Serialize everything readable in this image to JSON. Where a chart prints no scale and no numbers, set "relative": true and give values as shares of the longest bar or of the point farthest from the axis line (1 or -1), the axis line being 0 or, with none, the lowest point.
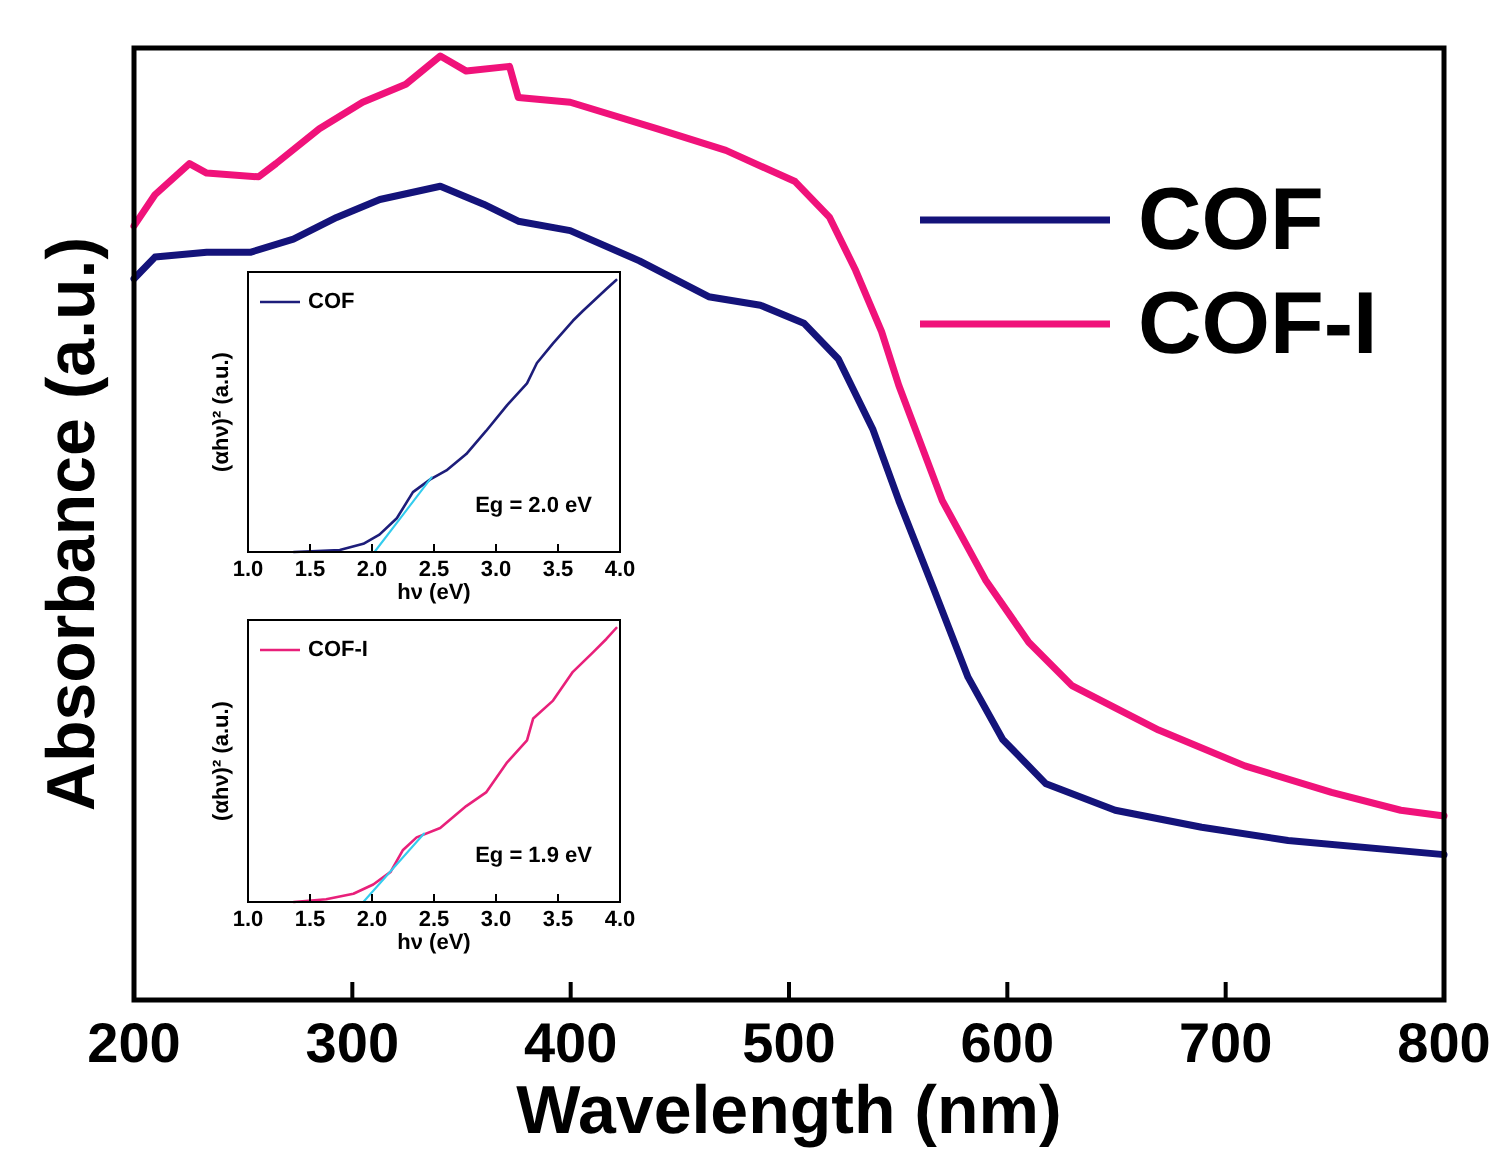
{
  "chart_data": [
    {
      "type": "line",
      "xlabel": "Wavelength (nm)",
      "ylabel": "Absorbance (a.u.)",
      "relative": true,
      "tick_labels": "x",
      "legend": "top right",
      "grid": false,
      "xlim": [
        200,
        800
      ],
      "xticks": [
        200,
        300,
        400,
        500,
        600,
        700,
        800
      ],
      "series": [
        {
          "name": "COF",
          "color": "#14137a",
          "x": [
            200,
            209.6,
            233.3,
            253.2,
            273,
            292.8,
            312.6,
            340.3,
            360.1,
            376,
            399.8,
            431.5,
            463.2,
            486.9,
            506.8,
            522.6,
            538.5,
            550.3,
            566.2,
            582,
            597.9,
            617.7,
            649.4,
            689,
            728.6,
            800
          ],
          "values": [
            0.764,
            0.787,
            0.792,
            0.792,
            0.806,
            0.829,
            0.848,
            0.862,
            0.843,
            0.825,
            0.815,
            0.783,
            0.745,
            0.736,
            0.717,
            0.679,
            0.604,
            0.529,
            0.436,
            0.342,
            0.276,
            0.229,
            0.201,
            0.183,
            0.169,
            0.154
          ]
        },
        {
          "name": "COF-I",
          "color": "#f0127a",
          "x": [
            200,
            209.6,
            225.4,
            233.3,
            257.1,
            265,
            284.9,
            304.7,
            324.5,
            340.3,
            352.2,
            372,
            376,
            399.8,
            439.4,
            471.1,
            502.8,
            518.6,
            530.5,
            542.4,
            550.3,
            570.2,
            590,
            609.8,
            629.6,
            669.3,
            708.8,
            748.5,
            780.2,
            800
          ],
          "values": [
            0.82,
            0.853,
            0.886,
            0.876,
            0.872,
            0.886,
            0.923,
            0.951,
            0.97,
            1,
            0.984,
            0.989,
            0.956,
            0.951,
            0.923,
            0.9,
            0.867,
            0.829,
            0.773,
            0.708,
            0.651,
            0.529,
            0.445,
            0.379,
            0.333,
            0.286,
            0.248,
            0.22,
            0.201,
            0.195
          ]
        }
      ]
    },
    {
      "type": "line",
      "xlabel": "hν (eV)",
      "ylabel": "(αhν)² (a.u.)",
      "relative": true,
      "legend": "top left",
      "grid": false,
      "tick_labels": "x",
      "xlim": [
        1,
        4
      ],
      "xticks": [
        {
          "value": 1,
          "label": "1.0"
        },
        {
          "value": 1.5,
          "label": "1.5"
        },
        {
          "value": 2,
          "label": "2.0"
        },
        {
          "value": 2.5,
          "label": "2.5"
        },
        {
          "value": 3,
          "label": "3.0"
        },
        {
          "value": 3.5,
          "label": "3.5"
        },
        {
          "value": 4,
          "label": "4.0"
        }
      ],
      "annotations": [
        "Eg = 2.0 eV"
      ],
      "series": [
        {
          "name": "COF",
          "color": "#1d1d7a",
          "x": [
            1.37,
            1.74,
            1.93,
            2.06,
            2.2,
            2.33,
            2.47,
            2.6,
            2.76,
            2.92,
            3.09,
            3.25,
            3.33,
            3.46,
            3.62,
            3.7,
            3.78,
            3.89,
            3.97
          ],
          "values": [
            0,
            0.007,
            0.03,
            0.064,
            0.124,
            0.22,
            0.267,
            0.3,
            0.36,
            0.445,
            0.54,
            0.62,
            0.695,
            0.767,
            0.85,
            0.886,
            0.92,
            0.967,
            1
          ]
        },
        {
          "type": "line",
          "color": "#33ccee",
          "x": [
            2.02,
            2.48
          ],
          "values": [
            0,
            0.274
          ]
        }
      ]
    },
    {
      "type": "line",
      "xlabel": "hν (eV)",
      "ylabel": "(αhν)² (a.u.)",
      "relative": true,
      "legend": "top left",
      "grid": false,
      "tick_labels": "x",
      "xlim": [
        1,
        4
      ],
      "xticks": [
        {
          "value": 1,
          "label": "1.0"
        },
        {
          "value": 1.5,
          "label": "1.5"
        },
        {
          "value": 2,
          "label": "2.0"
        },
        {
          "value": 2.5,
          "label": "2.5"
        },
        {
          "value": 3,
          "label": "3.0"
        },
        {
          "value": 3.5,
          "label": "3.5"
        },
        {
          "value": 4,
          "label": "4.0"
        }
      ],
      "annotations": [
        "Eg = 1.9 eV"
      ],
      "series": [
        {
          "name": "COF-I",
          "color": "#e8207a",
          "x": [
            1.37,
            1.63,
            1.85,
            2.01,
            2.15,
            2.25,
            2.36,
            2.55,
            2.76,
            2.92,
            3.09,
            3.25,
            3.3,
            3.46,
            3.62,
            3.78,
            3.89,
            3.97
          ],
          "values": [
            0,
            0.01,
            0.03,
            0.064,
            0.11,
            0.19,
            0.236,
            0.27,
            0.35,
            0.4,
            0.51,
            0.59,
            0.67,
            0.735,
            0.84,
            0.91,
            0.96,
            1
          ]
        },
        {
          "type": "line",
          "color": "#33ccee",
          "x": [
            1.93,
            2.42
          ],
          "values": [
            0,
            0.25
          ]
        }
      ]
    }
  ]
}
